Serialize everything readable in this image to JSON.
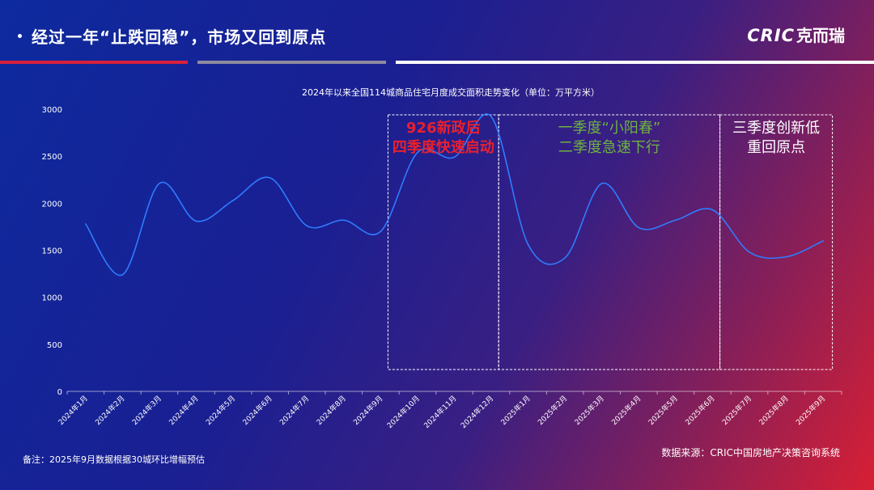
{
  "header": {
    "title": "经过一年“止跌回稳”，市场又回到原点",
    "logo_latin": "CRIC",
    "logo_cjk": "克而瑞"
  },
  "colors": {
    "line": "#2f7cff",
    "red_annotation": "#e8202e",
    "green_annotation": "#6db33f",
    "white": "#ffffff"
  },
  "chart_data": {
    "type": "line",
    "title": "2024年以来全国114城商品住宅月度成交面积走势变化（单位：万平方米）",
    "categories": [
      "2024年1月",
      "2024年2月",
      "2024年3月",
      "2024年4月",
      "2024年5月",
      "2024年6月",
      "2024年7月",
      "2024年8月",
      "2024年9月",
      "2024年10月",
      "2024年11月",
      "2024年12月",
      "2025年1月",
      "2025年2月",
      "2025年3月",
      "2025年4月",
      "2025年5月",
      "2025年6月",
      "2025年7月",
      "2025年8月",
      "2025年9月"
    ],
    "values": [
      1780,
      1240,
      2210,
      1810,
      2030,
      2270,
      1760,
      1820,
      1700,
      2540,
      2490,
      2920,
      1560,
      1420,
      2210,
      1740,
      1820,
      1930,
      1480,
      1430,
      1600
    ],
    "ylim": [
      0,
      3000
    ],
    "yticks": [
      0,
      500,
      1000,
      1500,
      2000,
      2500,
      3000
    ],
    "grid": false,
    "annotations": [
      {
        "lines": [
          "926新政后",
          "四季度快速启动"
        ],
        "color": "red",
        "range": [
          "2024年10月",
          "2024年12月"
        ]
      },
      {
        "lines": [
          "一季度“小阳春”",
          "二季度急速下行"
        ],
        "color": "green",
        "range": [
          "2025年1月",
          "2025年6月"
        ]
      },
      {
        "lines": [
          "三季度创新低",
          "重回原点"
        ],
        "color": "white",
        "range": [
          "2025年7月",
          "2025年9月"
        ]
      }
    ]
  },
  "footer": {
    "note": "备注：2025年9月数据根据30城环比增幅预估",
    "source": "数据来源：CRIC中国房地产决策咨询系统"
  }
}
